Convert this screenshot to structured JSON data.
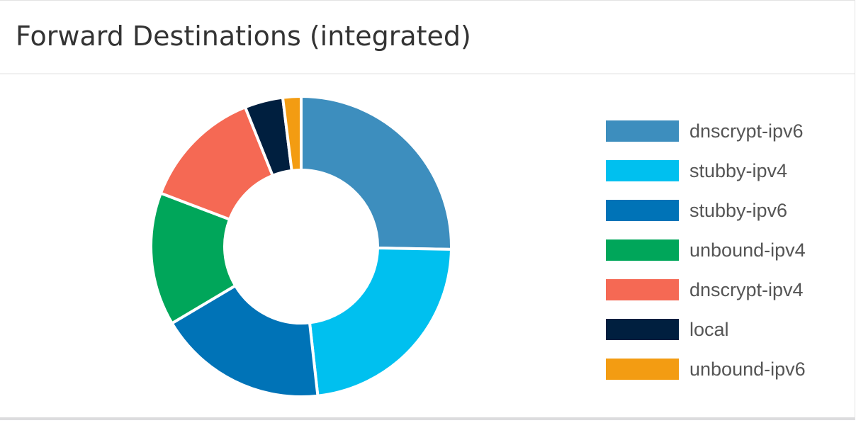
{
  "card": {
    "title": "Forward Destinations (integrated)"
  },
  "chart_data": {
    "type": "pie",
    "style": "donut",
    "title": "",
    "legend_position": "right",
    "categories": [
      "dnscrypt-ipv6",
      "stubby-ipv4",
      "stubby-ipv6",
      "unbound-ipv4",
      "dnscrypt-ipv4",
      "local",
      "unbound-ipv6"
    ],
    "values": [
      25.8,
      23.4,
      18.6,
      14.6,
      13.4,
      4.2,
      2.0
    ],
    "colors": [
      "#3d8ebe",
      "#00c0ef",
      "#0073b7",
      "#00a65a",
      "#f56954",
      "#001f3f",
      "#f39c12"
    ]
  }
}
